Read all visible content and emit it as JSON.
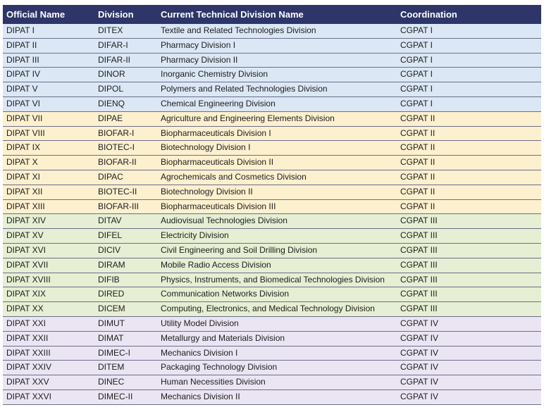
{
  "table": {
    "headers": [
      "Official Name",
      "Division",
      "Current Technical Division Name",
      "Coordination"
    ],
    "rows": [
      {
        "official": "DIPAT I",
        "division": "DITEX",
        "name": "Textile and Related Technologies Division",
        "coord": "CGPAT I",
        "group": "cg1"
      },
      {
        "official": "DIPAT II",
        "division": "DIFAR-I",
        "name": "Pharmacy Division I",
        "coord": "CGPAT I",
        "group": "cg1"
      },
      {
        "official": "DIPAT III",
        "division": "DIFAR-II",
        "name": "Pharmacy Division II",
        "coord": "CGPAT I",
        "group": "cg1"
      },
      {
        "official": "DIPAT IV",
        "division": "DINOR",
        "name": "Inorganic Chemistry Division",
        "coord": "CGPAT I",
        "group": "cg1"
      },
      {
        "official": "DIPAT V",
        "division": "DIPOL",
        "name": "Polymers and Related Technologies Division",
        "coord": "CGPAT I",
        "group": "cg1"
      },
      {
        "official": "DIPAT VI",
        "division": "DIENQ",
        "name": "Chemical Engineering Division",
        "coord": "CGPAT I",
        "group": "cg1"
      },
      {
        "official": "DIPAT VII",
        "division": "DIPAE",
        "name": "Agriculture and Engineering Elements Division",
        "coord": "CGPAT II",
        "group": "cg2"
      },
      {
        "official": "DIPAT VIII",
        "division": "BIOFAR-I",
        "name": "Biopharmaceuticals Division I",
        "coord": "CGPAT II",
        "group": "cg2"
      },
      {
        "official": "DIPAT IX",
        "division": "BIOTEC-I",
        "name": "Biotechnology Division I",
        "coord": "CGPAT II",
        "group": "cg2"
      },
      {
        "official": "DIPAT X",
        "division": "BIOFAR-II",
        "name": "Biopharmaceuticals Division II",
        "coord": "CGPAT II",
        "group": "cg2"
      },
      {
        "official": "DIPAT XI",
        "division": "DIPAC",
        "name": "Agrochemicals and Cosmetics Division",
        "coord": "CGPAT II",
        "group": "cg2"
      },
      {
        "official": "DIPAT XII",
        "division": "BIOTEC-II",
        "name": "Biotechnology Division II",
        "coord": "CGPAT II",
        "group": "cg2"
      },
      {
        "official": "DIPAT XIII",
        "division": "BIOFAR-III",
        "name": "Biopharmaceuticals Division III",
        "coord": "CGPAT II",
        "group": "cg2"
      },
      {
        "official": "DIPAT XIV",
        "division": "DITAV",
        "name": "Audiovisual Technologies Division",
        "coord": "CGPAT III",
        "group": "cg3"
      },
      {
        "official": "DIPAT XV",
        "division": "DIFEL",
        "name": "Electricity Division",
        "coord": "CGPAT III",
        "group": "cg3"
      },
      {
        "official": "DIPAT XVI",
        "division": "DICIV",
        "name": "Civil Engineering and Soil Drilling Division",
        "coord": "CGPAT III",
        "group": "cg3"
      },
      {
        "official": "DIPAT XVII",
        "division": "DIRAM",
        "name": "Mobile Radio Access Division",
        "coord": "CGPAT III",
        "group": "cg3"
      },
      {
        "official": "DIPAT XVIII",
        "division": "DIFIB",
        "name": "Physics, Instruments, and Biomedical Technologies Division",
        "coord": "CGPAT III",
        "group": "cg3"
      },
      {
        "official": "DIPAT XIX",
        "division": "DIRED",
        "name": "Communication Networks Division",
        "coord": "CGPAT III",
        "group": "cg3"
      },
      {
        "official": "DIPAT XX",
        "division": "DICEM",
        "name": "Computing, Electronics, and Medical Technology Division",
        "coord": "CGPAT III",
        "group": "cg3"
      },
      {
        "official": "DIPAT XXI",
        "division": "DIMUT",
        "name": "Utility Model Division",
        "coord": "CGPAT IV",
        "group": "cg4"
      },
      {
        "official": "DIPAT XXII",
        "division": "DIMAT",
        "name": "Metallurgy and Materials Division",
        "coord": "CGPAT IV",
        "group": "cg4"
      },
      {
        "official": "DIPAT XXIII",
        "division": "DIMEC-I",
        "name": "Mechanics Division I",
        "coord": "CGPAT IV",
        "group": "cg4"
      },
      {
        "official": "DIPAT XXIV",
        "division": "DITEM",
        "name": "Packaging Technology Division",
        "coord": "CGPAT IV",
        "group": "cg4"
      },
      {
        "official": "DIPAT XXV",
        "division": "DINEC",
        "name": "Human Necessities Division",
        "coord": "CGPAT IV",
        "group": "cg4"
      },
      {
        "official": "DIPAT XXVI",
        "division": "DIMEC-II",
        "name": "Mechanics Division II",
        "coord": "CGPAT IV",
        "group": "cg4"
      }
    ]
  },
  "colors": {
    "header_bg": "#2d3569",
    "cgpat_i": "#dbe7f5",
    "cgpat_ii": "#fdf0cf",
    "cgpat_iii": "#e6efd3",
    "cgpat_iv": "#ebe5f3"
  }
}
